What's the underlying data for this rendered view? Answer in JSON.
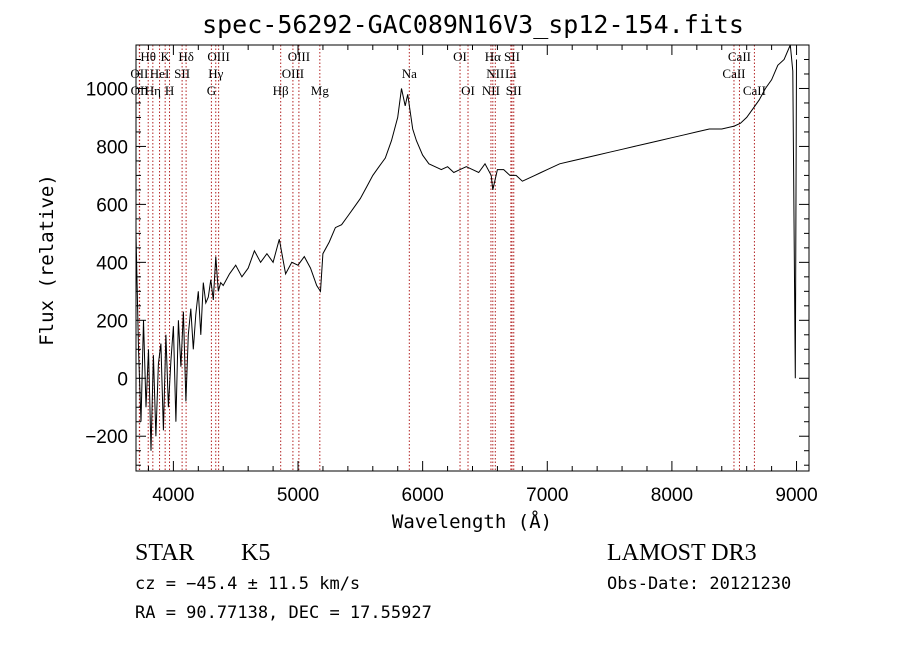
{
  "chart_data": {
    "type": "line",
    "title": "spec-56292-GAC089N16V3_sp12-154.fits",
    "xlabel": "Wavelength (Å)",
    "ylabel": "Flux (relative)",
    "xlim": [
      3700,
      9100
    ],
    "ylim": [
      -320,
      1150
    ],
    "x_ticks": [
      4000,
      5000,
      6000,
      7000,
      8000,
      9000
    ],
    "x_tick_labels": [
      "4000",
      "5000",
      "6000",
      "7000",
      "8000",
      "9000"
    ],
    "y_ticks": [
      -200,
      0,
      200,
      400,
      600,
      800,
      1000
    ],
    "y_tick_labels": [
      "−200",
      "0",
      "200",
      "400",
      "600",
      "800",
      "1000"
    ],
    "series": [
      {
        "name": "flux",
        "color": "#000000",
        "x": [
          3700,
          3720,
          3740,
          3760,
          3780,
          3800,
          3820,
          3840,
          3860,
          3880,
          3900,
          3920,
          3940,
          3960,
          3980,
          4000,
          4020,
          4040,
          4060,
          4080,
          4100,
          4120,
          4140,
          4160,
          4180,
          4200,
          4220,
          4240,
          4260,
          4280,
          4300,
          4320,
          4340,
          4360,
          4380,
          4400,
          4450,
          4500,
          4550,
          4600,
          4650,
          4700,
          4750,
          4800,
          4850,
          4900,
          4950,
          5000,
          5050,
          5100,
          5150,
          5180,
          5200,
          5250,
          5300,
          5350,
          5400,
          5450,
          5500,
          5550,
          5600,
          5650,
          5700,
          5750,
          5800,
          5830,
          5860,
          5880,
          5900,
          5920,
          5950,
          6000,
          6050,
          6100,
          6150,
          6200,
          6250,
          6300,
          6350,
          6400,
          6450,
          6500,
          6550,
          6563,
          6600,
          6650,
          6700,
          6750,
          6800,
          6850,
          6900,
          6950,
          7000,
          7100,
          7200,
          7300,
          7400,
          7500,
          7600,
          7700,
          7800,
          7900,
          8000,
          8100,
          8200,
          8300,
          8400,
          8500,
          8550,
          8600,
          8650,
          8700,
          8750,
          8800,
          8850,
          8900,
          8950,
          8970,
          8990,
          9000
        ],
        "y": [
          500,
          100,
          -150,
          200,
          -100,
          100,
          -250,
          80,
          -200,
          50,
          120,
          -180,
          150,
          -100,
          60,
          180,
          -150,
          200,
          40,
          230,
          -80,
          150,
          240,
          100,
          220,
          300,
          150,
          330,
          260,
          280,
          340,
          270,
          420,
          300,
          330,
          320,
          360,
          390,
          350,
          380,
          440,
          400,
          430,
          400,
          480,
          360,
          400,
          390,
          420,
          380,
          320,
          300,
          430,
          470,
          520,
          530,
          560,
          590,
          620,
          660,
          700,
          730,
          760,
          820,
          900,
          1000,
          940,
          980,
          920,
          860,
          820,
          770,
          740,
          730,
          720,
          730,
          710,
          720,
          730,
          720,
          710,
          740,
          700,
          650,
          720,
          720,
          700,
          700,
          680,
          690,
          700,
          710,
          720,
          740,
          750,
          760,
          770,
          780,
          790,
          800,
          810,
          820,
          830,
          840,
          850,
          860,
          860,
          870,
          880,
          900,
          930,
          960,
          1000,
          1030,
          1080,
          1100,
          1150,
          1060,
          0,
          1100
        ]
      }
    ],
    "spectral_lines": [
      {
        "label": "Hθ",
        "x": 3798,
        "row": 0
      },
      {
        "label": "OII",
        "x": 3727,
        "row": 1
      },
      {
        "label": "OII",
        "x": 3729,
        "row": 2
      },
      {
        "label": "Hη",
        "x": 3835,
        "row": 2
      },
      {
        "label": "HeI",
        "x": 3889,
        "row": 1
      },
      {
        "label": "K",
        "x": 3934,
        "row": 0
      },
      {
        "label": "SII",
        "x": 4070,
        "row": 1
      },
      {
        "label": "H",
        "x": 3969,
        "row": 2
      },
      {
        "label": "Hδ",
        "x": 4102,
        "row": 0
      },
      {
        "label": "OIII",
        "x": 4363,
        "row": 0
      },
      {
        "label": "Hγ",
        "x": 4340,
        "row": 1
      },
      {
        "label": "G",
        "x": 4305,
        "row": 2
      },
      {
        "label": "Hβ",
        "x": 4861,
        "row": 2
      },
      {
        "label": "OIII",
        "x": 5007,
        "row": 0
      },
      {
        "label": "OIII",
        "x": 4959,
        "row": 1
      },
      {
        "label": "Mg",
        "x": 5175,
        "row": 2
      },
      {
        "label": "Na",
        "x": 5893,
        "row": 1
      },
      {
        "label": "OI",
        "x": 6300,
        "row": 0
      },
      {
        "label": "OI",
        "x": 6364,
        "row": 2
      },
      {
        "label": "Hα",
        "x": 6563,
        "row": 0
      },
      {
        "label": "SII",
        "x": 6717,
        "row": 0
      },
      {
        "label": "NII",
        "x": 6583,
        "row": 1
      },
      {
        "label": "Li",
        "x": 6708,
        "row": 1
      },
      {
        "label": "NII",
        "x": 6548,
        "row": 2
      },
      {
        "label": "SII",
        "x": 6731,
        "row": 2
      },
      {
        "label": "CaII",
        "x": 8542,
        "row": 0
      },
      {
        "label": "CaII",
        "x": 8498,
        "row": 1
      },
      {
        "label": "CaII",
        "x": 8662,
        "row": 2
      }
    ]
  },
  "info": {
    "object_class": "STAR",
    "subclass": "K5",
    "survey": "LAMOST DR3",
    "redshift": "cz = −45.4 ± 11.5 km/s",
    "obs_date": "Obs-Date: 20121230",
    "coords": "RA =  90.77138, DEC =  17.55927"
  }
}
